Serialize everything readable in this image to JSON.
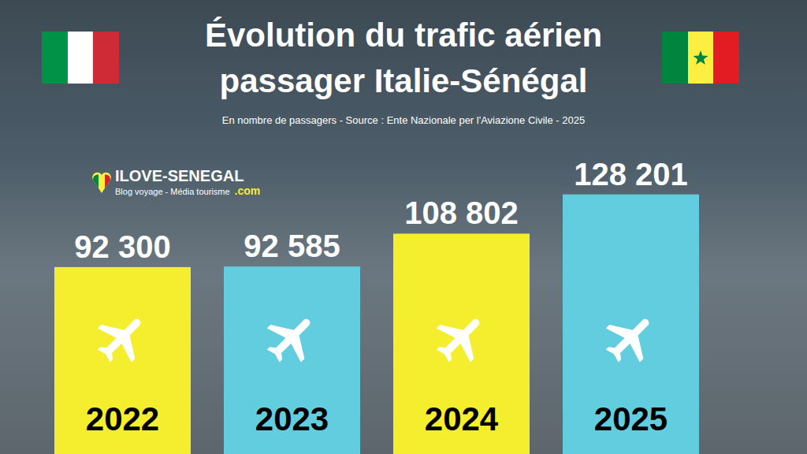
{
  "chart_data": {
    "type": "bar",
    "title": "Évolution du trafic aérien passager Italie-Sénégal",
    "subtitle": "En nombre de passagers - Source : Ente Nazionale per l'Aviazione Civile - 2025",
    "annotations": [
      "ILOVE-SENEGAL",
      "Blog voyage - Média tourisme",
      ".com"
    ],
    "categories": [
      "2022",
      "2023",
      "2024",
      "2025"
    ],
    "values": [
      92300,
      92585,
      108802,
      128201
    ],
    "value_labels": [
      "92 300",
      "92 585",
      "108 802",
      "128 201"
    ],
    "colors": [
      "#f5ee2e",
      "#63cde0",
      "#f5ee2e",
      "#63cde0"
    ],
    "ylim": [
      0,
      130000
    ],
    "yticks": [],
    "tick_labels": false,
    "data_labels": true
  }
}
